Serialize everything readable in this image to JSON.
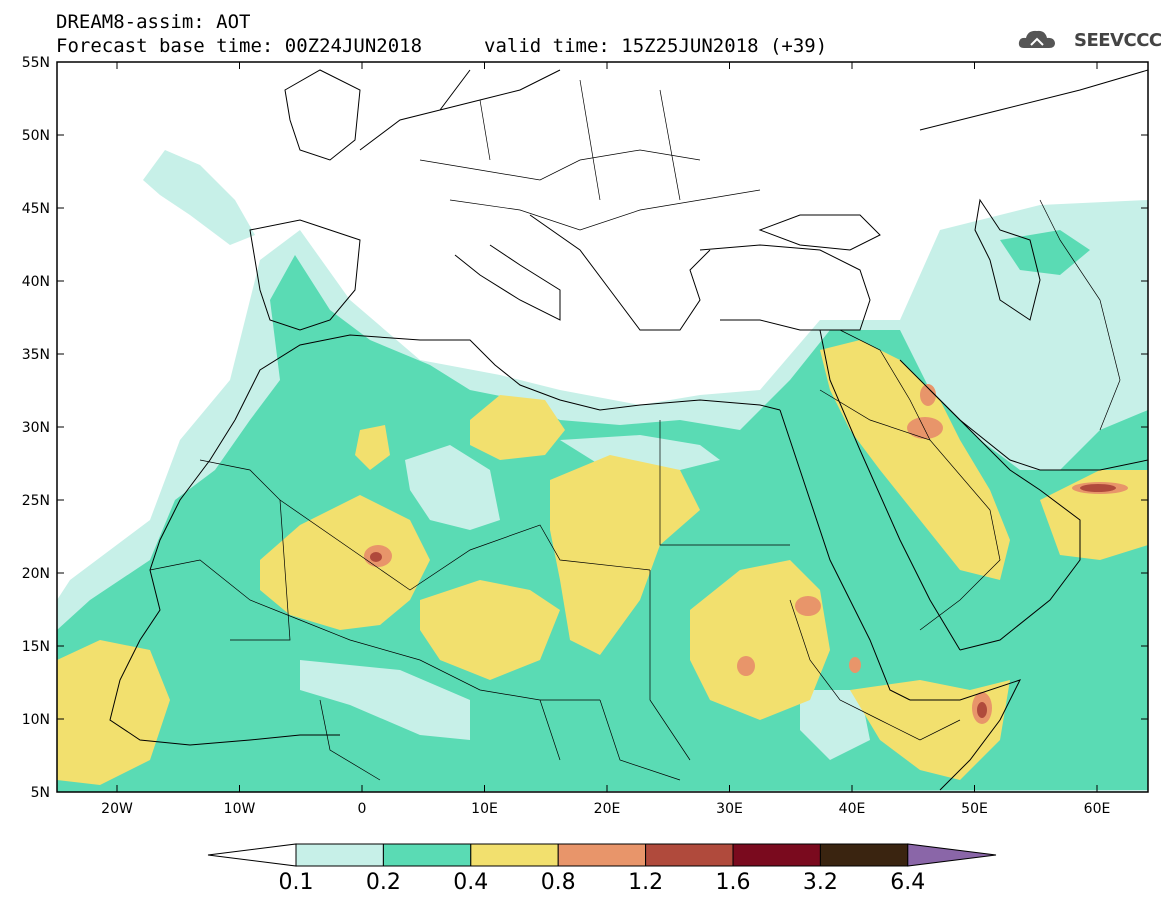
{
  "header": {
    "title": "DREAM8-assim: AOT",
    "base_time": "Forecast base time: 00Z24JUN2018",
    "valid_time": "valid time: 15Z25JUN2018 (+39)"
  },
  "logo": {
    "text": "SEEVCCC",
    "icon": "cloud-logo-icon"
  },
  "map": {
    "lat_labels": [
      "55N",
      "50N",
      "45N",
      "40N",
      "35N",
      "30N",
      "25N",
      "20N",
      "15N",
      "10N",
      "5N"
    ],
    "lon_labels": [
      "20W",
      "10W",
      "0",
      "10E",
      "20E",
      "30E",
      "40E",
      "50E",
      "60E"
    ]
  },
  "colorbar": {
    "labels": [
      "0.1",
      "0.2",
      "0.4",
      "0.8",
      "1.2",
      "1.6",
      "3.2",
      "6.4"
    ],
    "colors": [
      "#c7f0e8",
      "#5adbb4",
      "#f2e06e",
      "#e8956a",
      "#b04a3c",
      "#7a0a1e",
      "#3a2410",
      "#8a66a8"
    ]
  }
}
